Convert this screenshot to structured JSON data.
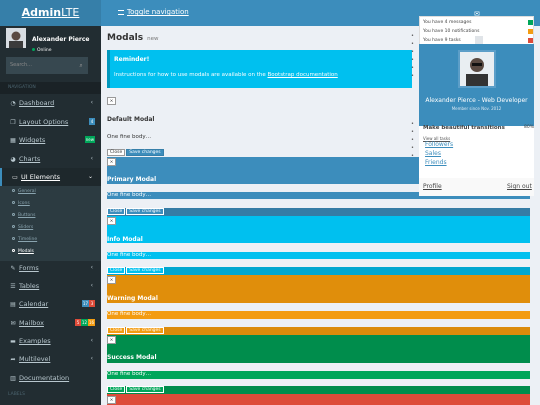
{
  "app": {
    "logo_bold": "Admin",
    "logo_rest": "LTE",
    "toggle_nav": "Toggle navigation"
  },
  "user": {
    "name": "Alexander Pierce",
    "status": "Online"
  },
  "sidebar": {
    "search_placeholder": "Search...",
    "header": "NAVIGATION",
    "items": [
      {
        "label": "Dashboard",
        "icon": "dashboard-icon"
      },
      {
        "label": "Layout Options",
        "badge": "4"
      },
      {
        "label": "Widgets",
        "badge": "new"
      },
      {
        "label": "Charts"
      },
      {
        "label": "UI Elements"
      },
      {
        "label": "Forms"
      },
      {
        "label": "Tables"
      },
      {
        "label": "Calendar",
        "badges": [
          "17",
          "3"
        ]
      },
      {
        "label": "Mailbox",
        "badges": [
          "5",
          "12",
          "16"
        ]
      },
      {
        "label": "Examples"
      },
      {
        "label": "Multilevel"
      },
      {
        "label": "Documentation"
      }
    ],
    "submenu": [
      "General",
      "Icons",
      "Buttons",
      "Sliders",
      "Timeline",
      "Modals"
    ],
    "labels_header": "LABELS"
  },
  "page": {
    "title": "Modals",
    "subtitle": "new"
  },
  "callout": {
    "title": "Reminder!",
    "text": "Instructions for how to use modals are available on the ",
    "link": "Bootstrap documentation"
  },
  "modals": {
    "close_x": "×",
    "close_label": "Close",
    "save_label": "Save changes",
    "body": "One fine body…",
    "titles": [
      "Default Modal",
      "Primary Modal",
      "Info Modal",
      "Warning Modal",
      "Success Modal"
    ]
  },
  "notifications": {
    "messages": "You have 4 messages",
    "notifications": "You have 10 notifications",
    "tasks": "You have 9 tasks",
    "view_all_tasks": "View all tasks",
    "task_make": "Make beautiful transitions",
    "task_percent": "80%"
  },
  "profile": {
    "name": "Alexander Pierce - Web Developer",
    "since": "Member since Nov. 2012",
    "links": [
      "Followers",
      "Sales",
      "Friends"
    ],
    "profile_btn": "Profile",
    "signout_btn": "Sign out"
  },
  "colors": {
    "primary": "#3c8dbc",
    "info": "#00c0ef",
    "warning": "#f39c12",
    "success": "#00a65a",
    "danger": "#dd4b39",
    "sidebar": "#222d32"
  }
}
